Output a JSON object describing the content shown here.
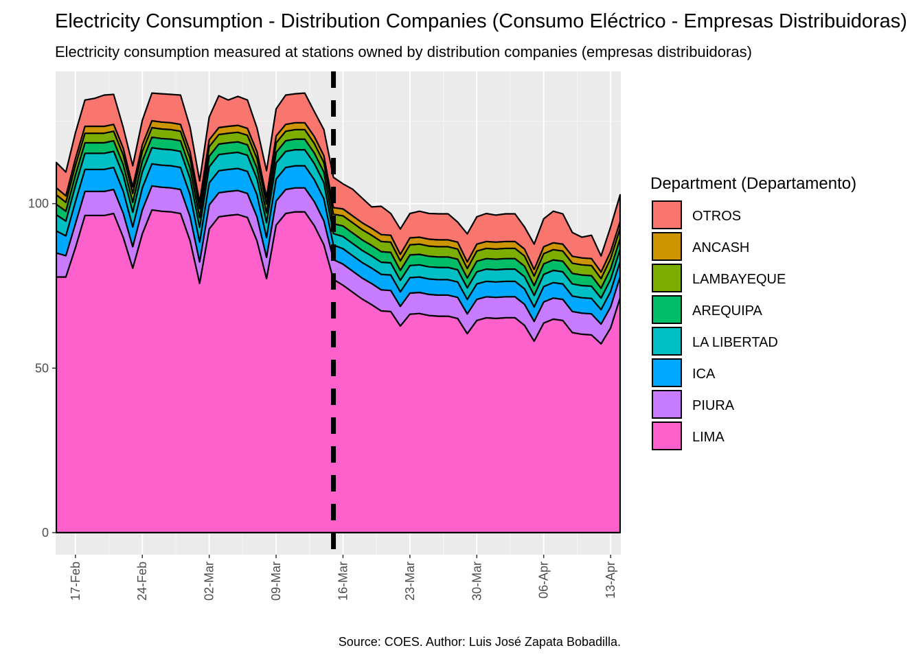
{
  "chart_data": {
    "type": "stacked_area",
    "title": "Electricity Consumption - Distribution Companies (Consumo Eléctrico - Empresas Distribuidoras)",
    "subtitle": "Electricity consumption measured at stations owned by distribution companies (empresas distribuidoras)",
    "caption": "Source: COES. Author: Luis José Zapata Bobadilla.",
    "legend_title": "Department (Departamento)",
    "legend_position": "right",
    "x": [
      "15-Feb",
      "16-Feb",
      "17-Feb",
      "18-Feb",
      "19-Feb",
      "20-Feb",
      "21-Feb",
      "22-Feb",
      "23-Feb",
      "24-Feb",
      "25-Feb",
      "26-Feb",
      "27-Feb",
      "28-Feb",
      "29-Feb",
      "01-Mar",
      "02-Mar",
      "03-Mar",
      "04-Mar",
      "05-Mar",
      "06-Mar",
      "07-Mar",
      "08-Mar",
      "09-Mar",
      "10-Mar",
      "11-Mar",
      "12-Mar",
      "13-Mar",
      "14-Mar",
      "15-Mar",
      "16-Mar",
      "17-Mar",
      "18-Mar",
      "19-Mar",
      "20-Mar",
      "21-Mar",
      "22-Mar",
      "23-Mar",
      "24-Mar",
      "25-Mar",
      "26-Mar",
      "27-Mar",
      "28-Mar",
      "29-Mar",
      "30-Mar",
      "31-Mar",
      "01-Apr",
      "02-Apr",
      "03-Apr",
      "04-Apr",
      "05-Apr",
      "06-Apr",
      "07-Apr",
      "08-Apr",
      "09-Apr",
      "10-Apr",
      "11-Apr",
      "12-Apr",
      "13-Apr",
      "14-Apr"
    ],
    "xticks": [
      "17-Feb",
      "24-Feb",
      "02-Mar",
      "09-Mar",
      "16-Mar",
      "23-Mar",
      "30-Mar",
      "06-Apr",
      "13-Apr"
    ],
    "vline": "15-Mar",
    "ylim": [
      -6.7,
      140.2
    ],
    "yticks": [
      0,
      50,
      100
    ],
    "grid": true,
    "series": [
      {
        "name": "OTROS",
        "color": "#F8766D",
        "values": [
          7.7,
          7.2,
          7.8,
          8.0,
          8.5,
          9.5,
          9.1,
          6.3,
          6.4,
          7.4,
          8.4,
          8.6,
          8.6,
          8.9,
          7.4,
          6.4,
          6.9,
          9.7,
          8.0,
          8.8,
          8.6,
          7.2,
          8.1,
          8.2,
          8.9,
          8.8,
          9.0,
          7.6,
          7.9,
          9.2,
          7.6,
          8.1,
          7.5,
          6.5,
          8.6,
          6.6,
          7.7,
          7.4,
          7.9,
          7.8,
          7.9,
          7.9,
          6.1,
          8.5,
          8.3,
          8.5,
          8.2,
          8.4,
          8.4,
          6.7,
          7.7,
          8.5,
          9.6,
          9.2,
          7.2,
          6.3,
          7.1,
          4.9,
          7.5,
          8.1
        ]
      },
      {
        "name": "ANCASH",
        "color": "#CD9600",
        "values": [
          2.1,
          2.0,
          2.1,
          2.1,
          2.1,
          2.1,
          2.1,
          2.1,
          2.0,
          2.1,
          2.1,
          2.1,
          2.1,
          2.1,
          2.1,
          2.0,
          2.1,
          2.1,
          2.1,
          2.1,
          2.1,
          2.1,
          2.0,
          2.1,
          2.1,
          2.1,
          2.1,
          2.1,
          2.1,
          2.0,
          2.1,
          2.1,
          2.1,
          2.1,
          2.1,
          2.1,
          2.0,
          2.1,
          2.1,
          2.1,
          2.1,
          2.1,
          2.1,
          2.0,
          2.1,
          2.1,
          2.1,
          2.1,
          2.1,
          2.1,
          2.0,
          2.1,
          2.1,
          2.1,
          2.1,
          2.1,
          2.1,
          2.0,
          2.1,
          2.1
        ]
      },
      {
        "name": "LAMBAYEQUE",
        "color": "#7CAE00",
        "values": [
          2.9,
          2.7,
          2.9,
          2.9,
          2.9,
          2.9,
          2.9,
          2.9,
          2.7,
          2.9,
          2.9,
          2.9,
          2.9,
          2.9,
          2.9,
          2.7,
          2.9,
          2.9,
          2.9,
          2.9,
          2.9,
          2.9,
          2.7,
          2.9,
          2.9,
          2.9,
          2.9,
          2.9,
          2.9,
          2.9,
          3.1,
          3.1,
          3.1,
          3.1,
          3.1,
          3.1,
          2.9,
          3.1,
          3.1,
          3.1,
          3.1,
          3.1,
          3.1,
          2.9,
          3.1,
          3.1,
          3.1,
          3.1,
          3.1,
          3.1,
          2.9,
          3.1,
          3.1,
          3.1,
          3.1,
          3.1,
          3.1,
          2.9,
          3.1,
          3.1
        ]
      },
      {
        "name": "AREQUIPA",
        "color": "#00BE67",
        "values": [
          3.2,
          3.0,
          3.2,
          3.2,
          3.2,
          3.2,
          3.2,
          3.2,
          3.0,
          3.2,
          3.2,
          3.2,
          3.2,
          3.2,
          3.2,
          3.0,
          3.2,
          3.2,
          3.2,
          3.2,
          3.2,
          3.2,
          3.0,
          3.2,
          3.2,
          3.2,
          3.2,
          3.2,
          3.2,
          3.0,
          3.2,
          3.2,
          3.2,
          3.2,
          3.2,
          3.2,
          3.0,
          3.2,
          3.2,
          3.2,
          3.2,
          3.2,
          3.2,
          3.0,
          3.2,
          3.2,
          3.2,
          3.2,
          3.2,
          3.2,
          3.0,
          3.2,
          3.2,
          3.2,
          3.2,
          3.2,
          3.2,
          3.0,
          3.2,
          3.2
        ]
      },
      {
        "name": "LA LIBERTAD",
        "color": "#00BFC4",
        "values": [
          4.9,
          4.5,
          4.9,
          4.9,
          4.9,
          4.9,
          4.9,
          4.9,
          4.5,
          4.9,
          4.9,
          4.9,
          4.9,
          4.9,
          4.9,
          4.5,
          4.9,
          4.9,
          4.9,
          4.9,
          4.9,
          4.9,
          4.5,
          4.9,
          4.9,
          4.9,
          4.9,
          4.9,
          4.9,
          3.5,
          3.7,
          3.7,
          3.7,
          3.7,
          3.7,
          3.7,
          3.5,
          3.7,
          3.7,
          3.7,
          3.7,
          3.7,
          3.7,
          3.5,
          3.7,
          3.7,
          3.7,
          3.7,
          3.7,
          3.7,
          3.5,
          3.7,
          3.7,
          3.7,
          3.7,
          3.7,
          3.7,
          3.5,
          3.7,
          3.7
        ]
      },
      {
        "name": "ICA",
        "color": "#00A9FF",
        "values": [
          6.7,
          6.0,
          6.7,
          6.7,
          6.7,
          6.7,
          6.7,
          6.7,
          6.0,
          6.7,
          6.7,
          6.7,
          6.7,
          6.7,
          6.7,
          6.0,
          6.7,
          6.7,
          6.7,
          6.7,
          6.7,
          6.7,
          6.0,
          6.7,
          6.7,
          6.7,
          6.7,
          6.7,
          6.7,
          4.4,
          4.7,
          4.7,
          4.7,
          4.7,
          4.7,
          4.7,
          4.4,
          4.7,
          4.7,
          4.7,
          4.7,
          4.7,
          4.7,
          4.4,
          4.7,
          4.7,
          4.7,
          4.7,
          4.7,
          4.7,
          4.4,
          4.7,
          4.7,
          4.7,
          4.7,
          4.7,
          4.7,
          4.4,
          4.7,
          4.7
        ]
      },
      {
        "name": "PIURA",
        "color": "#C77CFF",
        "values": [
          7.3,
          6.5,
          7.3,
          7.3,
          7.3,
          7.3,
          7.3,
          7.3,
          6.5,
          7.3,
          7.3,
          7.3,
          7.3,
          7.3,
          7.3,
          6.5,
          7.3,
          7.3,
          7.3,
          7.3,
          7.3,
          7.3,
          6.5,
          7.3,
          7.3,
          7.3,
          7.3,
          7.3,
          7.3,
          6.0,
          6.4,
          6.4,
          6.4,
          6.4,
          6.4,
          6.4,
          6.0,
          6.4,
          6.4,
          6.4,
          6.4,
          6.4,
          6.4,
          6.0,
          6.4,
          6.4,
          6.4,
          6.4,
          6.4,
          6.4,
          6.0,
          6.4,
          6.4,
          6.4,
          6.4,
          6.4,
          6.4,
          6.0,
          6.4,
          6.4
        ]
      },
      {
        "name": "LIMA",
        "color": "#FF61CC",
        "values": [
          77.7,
          77.7,
          86.6,
          96.4,
          96.4,
          96.4,
          97,
          89.8,
          80.4,
          90.8,
          98.1,
          97.7,
          97.5,
          97,
          88.7,
          75.8,
          92.3,
          96,
          96.4,
          96.7,
          95.8,
          88.7,
          77.2,
          93.5,
          97,
          97.5,
          97.5,
          93.3,
          87.5,
          77,
          75.2,
          73.1,
          71,
          69.3,
          67.4,
          67.2,
          62.8,
          66.4,
          66.6,
          66,
          65.8,
          65.8,
          65.1,
          60.5,
          64.5,
          65.3,
          65.1,
          65.3,
          65.3,
          63,
          58.2,
          63.7,
          64.9,
          64.5,
          60.8,
          60.3,
          60.1,
          57.4,
          62.2,
          71.4
        ]
      }
    ]
  }
}
